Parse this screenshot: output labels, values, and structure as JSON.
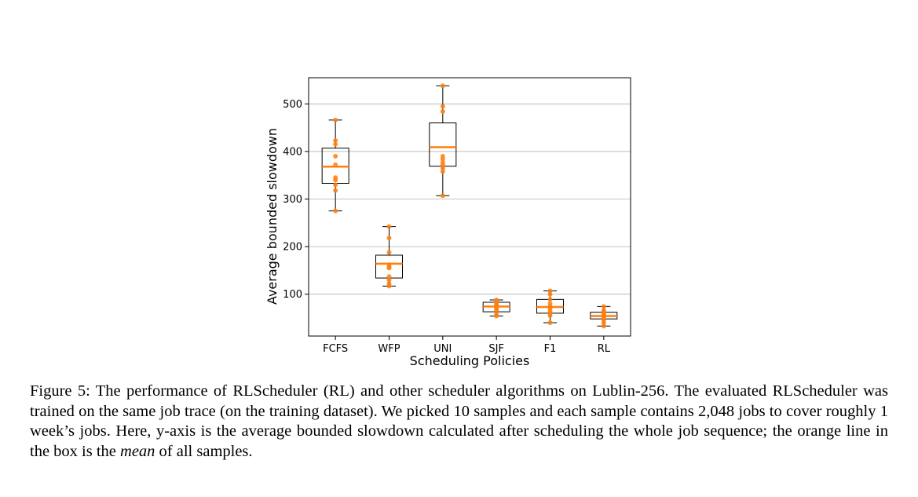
{
  "chart_data": {
    "type": "box",
    "xlabel": "Scheduling Policies",
    "ylabel": "Average bounded slowdown",
    "ylim": [
      12,
      555
    ],
    "yticks": [
      100,
      200,
      300,
      400,
      500
    ],
    "grid": "horizontal",
    "categories": [
      "FCFS",
      "WFP",
      "UNI",
      "SJF",
      "F1",
      "RL"
    ],
    "boxes": [
      {
        "label": "FCFS",
        "whisker_low": 275,
        "q1": 333,
        "mean": 368,
        "q3": 407,
        "whisker_high": 466,
        "points": [
          466,
          423,
          415,
          390,
          372,
          345,
          340,
          330,
          318,
          275
        ]
      },
      {
        "label": "WFP",
        "whisker_low": 117,
        "q1": 134,
        "mean": 164,
        "q3": 182,
        "whisker_high": 242,
        "points": [
          242,
          218,
          188,
          162,
          157,
          155,
          137,
          130,
          122,
          117
        ]
      },
      {
        "label": "UNI",
        "whisker_low": 307,
        "q1": 369,
        "mean": 409,
        "q3": 460,
        "whisker_high": 538,
        "points": [
          538,
          495,
          484,
          390,
          384,
          377,
          372,
          365,
          358,
          307
        ]
      },
      {
        "label": "SJF",
        "whisker_low": 54,
        "q1": 63,
        "mean": 74,
        "q3": 83,
        "whisker_high": 88,
        "points": [
          88,
          85,
          82,
          78,
          76,
          73,
          70,
          66,
          58,
          54
        ]
      },
      {
        "label": "F1",
        "whisker_low": 40,
        "q1": 60,
        "mean": 73,
        "q3": 89,
        "whisker_high": 107,
        "points": [
          107,
          100,
          89,
          80,
          74,
          70,
          64,
          60,
          55,
          40
        ]
      },
      {
        "label": "RL",
        "whisker_low": 33,
        "q1": 48,
        "mean": 54,
        "q3": 62,
        "whisker_high": 74,
        "points": [
          74,
          66,
          62,
          58,
          56,
          53,
          50,
          46,
          40,
          33
        ]
      }
    ],
    "colors": {
      "mean_line": "#ff7f0e",
      "points": "#ff7f0e",
      "box": "#000000",
      "grid": "#b0b0b0"
    }
  },
  "caption": {
    "prefix": "Figure 5: The performance of RLScheduler (RL) and other scheduler algorithms on Lublin-256.  The evaluated RLScheduler was trained on the same job trace (on the training dataset).  We picked 10 samples and each sample contains 2,048 jobs to cover roughly 1 week’s jobs.  Here, y-axis is the average bounded slowdown calculated after scheduling the whole job sequence; the orange line in the box is the ",
    "emphasis": "mean",
    "suffix": " of all samples."
  }
}
